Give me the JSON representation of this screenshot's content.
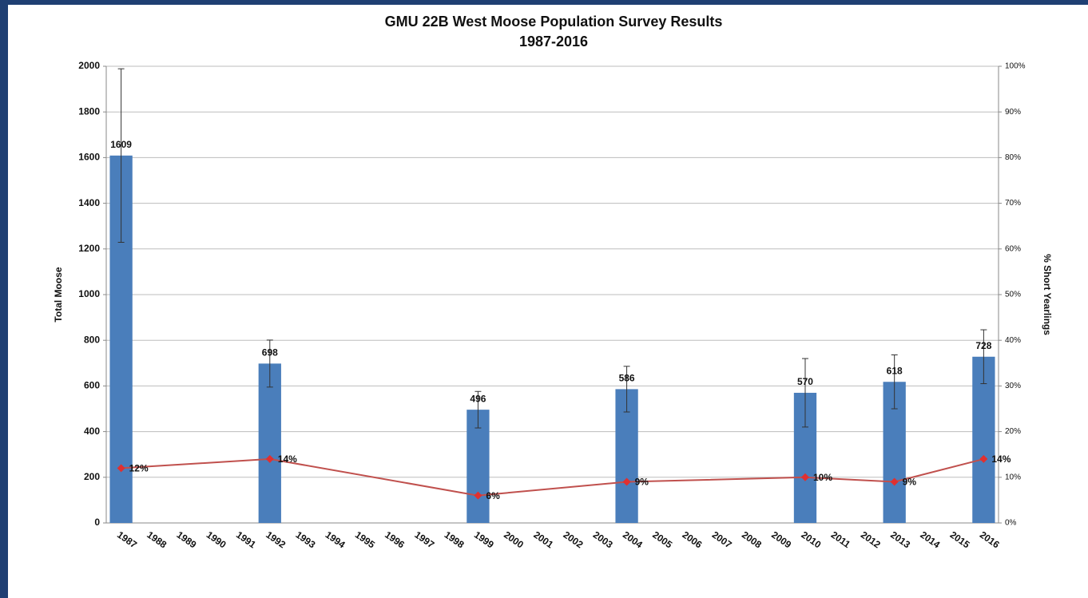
{
  "chart_data": {
    "type": "bar",
    "title": "GMU 22B West Moose Population Survey Results",
    "subtitle": "1987-2016",
    "y_label": "Total Moose",
    "y2_label": "% Short Yearlings",
    "categories": [
      "1987",
      "1988",
      "1989",
      "1990",
      "1991",
      "1992",
      "1993",
      "1994",
      "1995",
      "1996",
      "1997",
      "1998",
      "1999",
      "2000",
      "2001",
      "2002",
      "2003",
      "2004",
      "2005",
      "2006",
      "2007",
      "2008",
      "2009",
      "2010",
      "2011",
      "2012",
      "2013",
      "2014",
      "2015",
      "2016"
    ],
    "ylim": [
      0,
      2000
    ],
    "yticks": [
      0,
      200,
      400,
      600,
      800,
      1000,
      1200,
      1400,
      1600,
      1800,
      2000
    ],
    "y2lim": [
      0,
      100
    ],
    "y2ticks": [
      {
        "value": 0,
        "label": "0%"
      },
      {
        "value": 10,
        "label": "10%"
      },
      {
        "value": 20,
        "label": "20%"
      },
      {
        "value": 30,
        "label": "30%"
      },
      {
        "value": 40,
        "label": "40%"
      },
      {
        "value": 50,
        "label": "50%"
      },
      {
        "value": 60,
        "label": "60%"
      },
      {
        "value": 70,
        "label": "70%"
      },
      {
        "value": 80,
        "label": "80%"
      },
      {
        "value": 90,
        "label": "90%"
      },
      {
        "value": 100,
        "label": "100%"
      }
    ],
    "grid": true,
    "series": [
      {
        "type": "bar",
        "color": "#4a7ebb",
        "x": [
          "1987",
          "1992",
          "1999",
          "2004",
          "2010",
          "2013",
          "2016"
        ],
        "values": [
          1609,
          698,
          496,
          586,
          570,
          618,
          728
        ],
        "errors": [
          380,
          103,
          80,
          100,
          150,
          118,
          118
        ]
      },
      {
        "type": "line",
        "axis": "y2",
        "color": "#c0504d",
        "x": [
          "1987",
          "1992",
          "1999",
          "2004",
          "2010",
          "2013",
          "2016"
        ],
        "values": [
          12,
          14,
          6,
          9,
          10,
          9,
          14
        ],
        "value_labels": [
          "12%",
          "14%",
          "6%",
          "9%",
          "10%",
          "9%",
          "14%"
        ]
      }
    ]
  }
}
